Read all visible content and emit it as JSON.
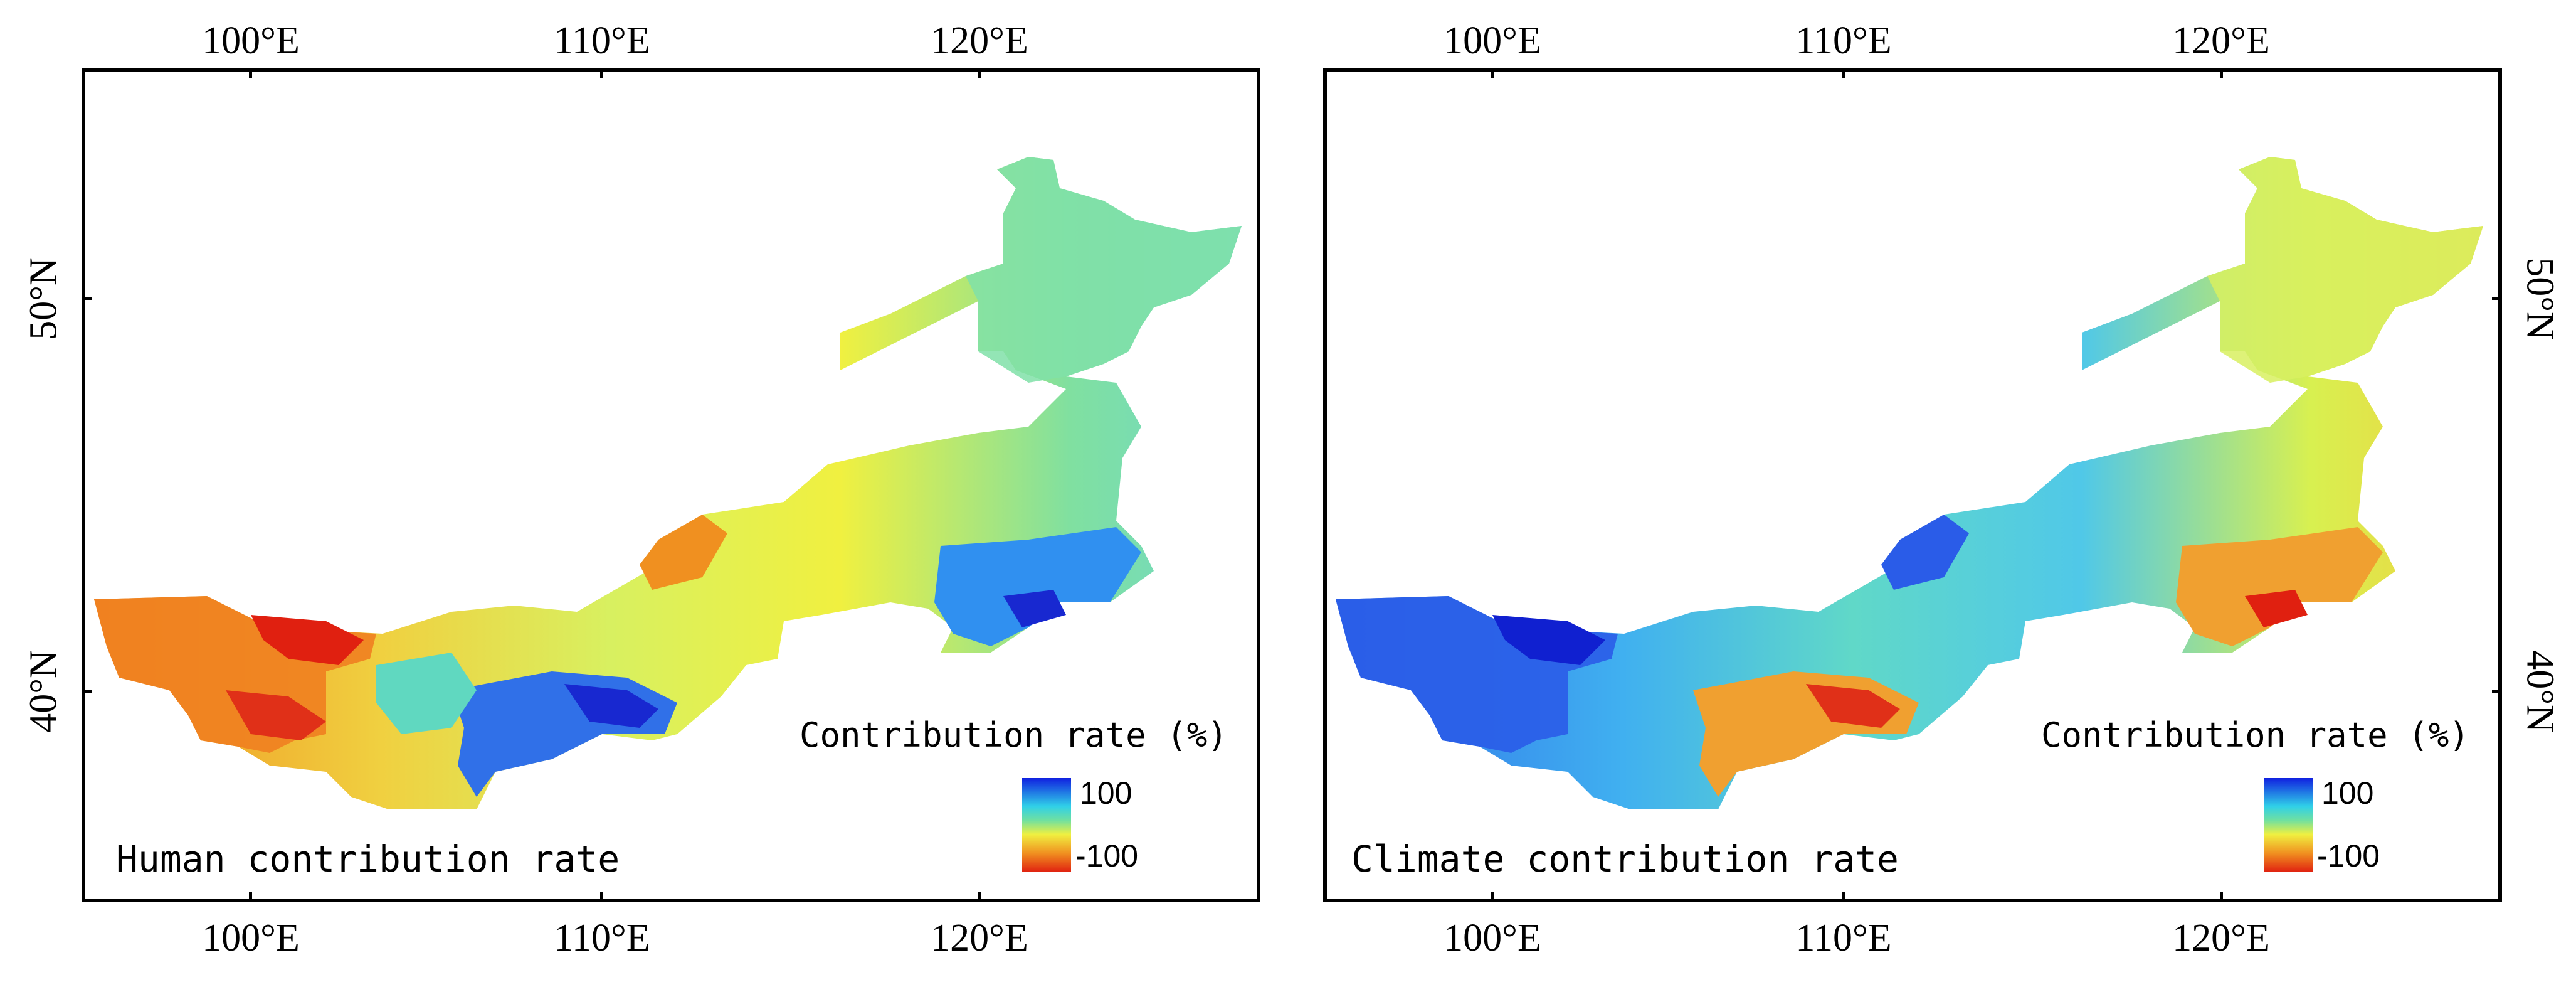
{
  "panels": [
    {
      "title": "Human contribution rate",
      "legend_title": "Contribution rate (%)",
      "legend_max": "100",
      "legend_min": "-100",
      "lon_labels": [
        "100°E",
        "110°E",
        "120°E"
      ],
      "lat_labels": [
        "50°N",
        "40°N"
      ]
    },
    {
      "title": "Climate contribution rate",
      "legend_title": "Contribution rate (%)",
      "legend_max": "100",
      "legend_min": "-100",
      "lon_labels": [
        "100°E",
        "110°E",
        "120°E"
      ],
      "lat_labels": [
        "50°N",
        "40°N"
      ]
    }
  ],
  "colors": {
    "high": "#1020e0",
    "cyan": "#30d0e8",
    "green": "#70e0a0",
    "yellow": "#f0f040",
    "orange": "#f09020",
    "low": "#e02010"
  }
}
